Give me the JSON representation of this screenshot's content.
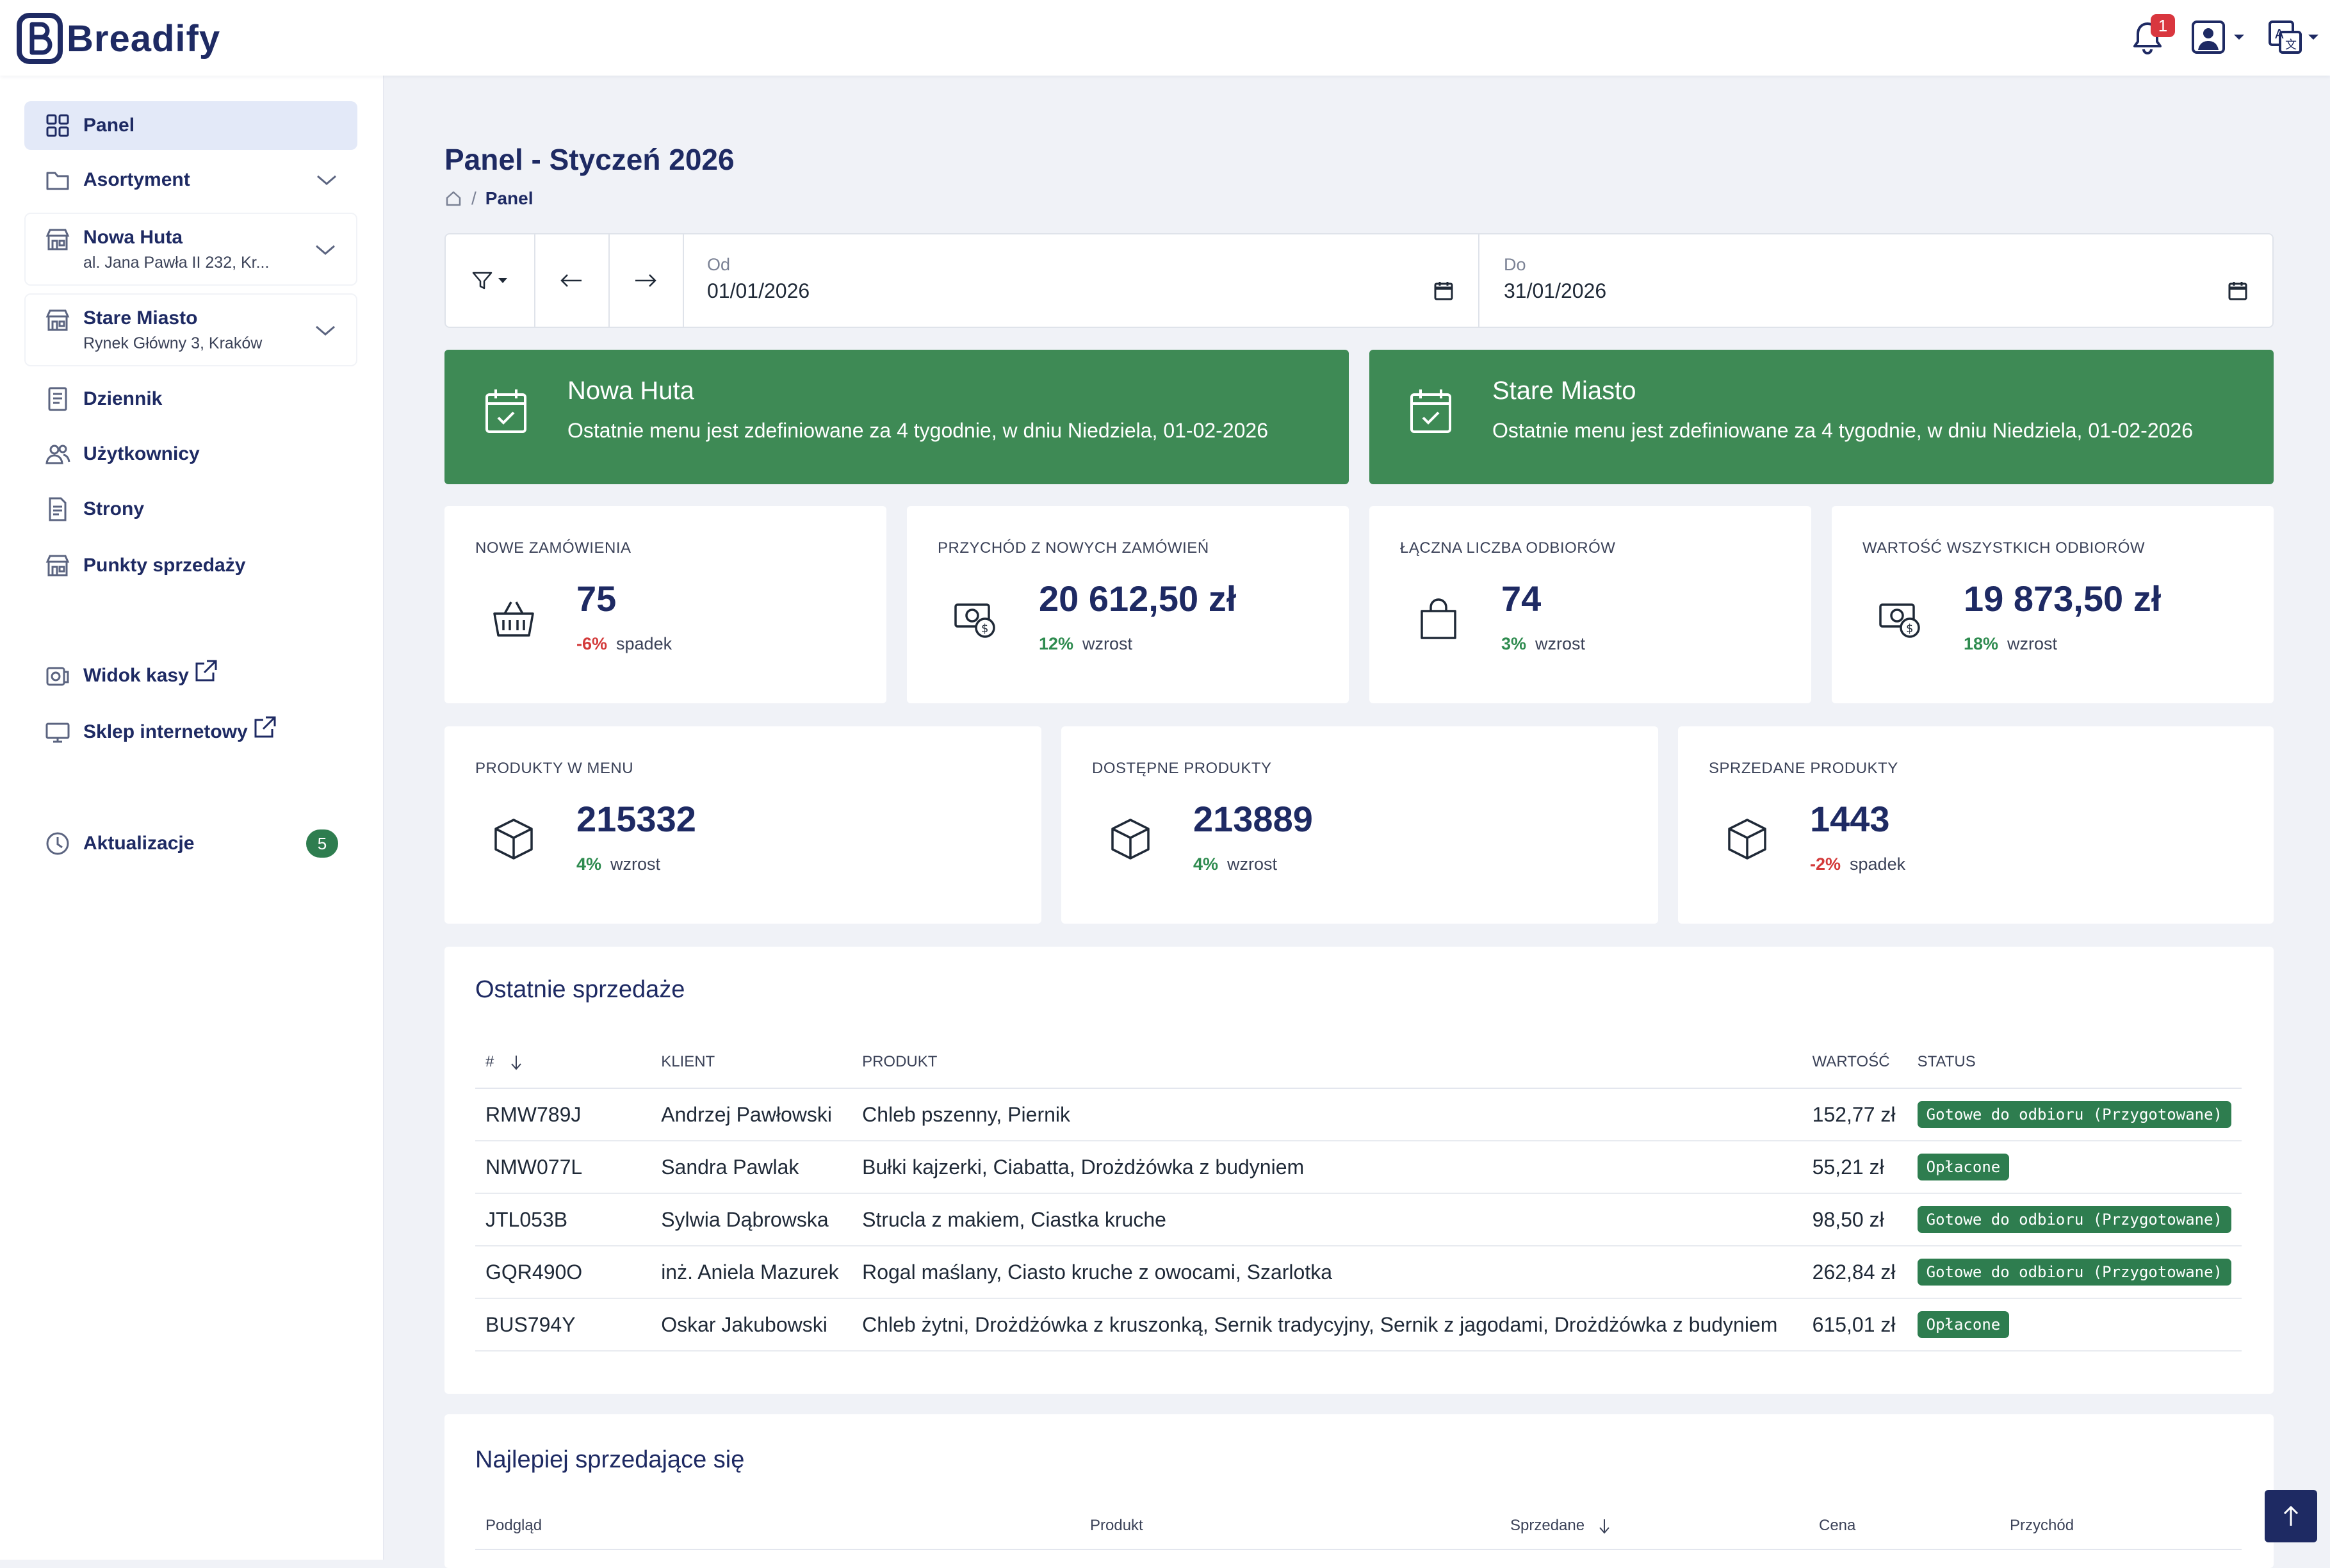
{
  "app": {
    "name": "Breadify",
    "notification_count": "1"
  },
  "sidebar": {
    "items": [
      {
        "label": "Panel"
      },
      {
        "label": "Asortyment"
      },
      {
        "label": "Nowa Huta",
        "sub": "al. Jana Pawła II 232, Kr..."
      },
      {
        "label": "Stare Miasto",
        "sub": "Rynek Główny 3, Kraków"
      },
      {
        "label": "Dziennik"
      },
      {
        "label": "Użytkownicy"
      },
      {
        "label": "Strony"
      },
      {
        "label": "Punkty sprzedaży"
      },
      {
        "label": "Widok kasy"
      },
      {
        "label": "Sklep internetowy"
      },
      {
        "label": "Aktualizacje",
        "badge": "5"
      }
    ]
  },
  "header": {
    "title": "Panel - Styczeń 2026",
    "breadcrumb_current": "Panel",
    "breadcrumb_sep": "/"
  },
  "filter": {
    "from_label": "Od",
    "from_value": "01/01/2026",
    "to_label": "Do",
    "to_value": "31/01/2026"
  },
  "alerts": [
    {
      "title": "Nowa Huta",
      "text": "Ostatnie menu jest zdefiniowane za 4 tygodnie, w dniu Niedziela, 01-02-2026"
    },
    {
      "title": "Stare Miasto",
      "text": "Ostatnie menu jest zdefiniowane za 4 tygodnie, w dniu Niedziela, 01-02-2026"
    }
  ],
  "stats_row1": [
    {
      "label": "Nowe zamówienia",
      "value": "75",
      "change": "-6%",
      "trend": "spadek",
      "icon": "basket-icon"
    },
    {
      "label": "Przychód z nowych zamówień",
      "value": "20 612,50 zł",
      "change": "12%",
      "trend": "wzrost",
      "icon": "money-icon"
    },
    {
      "label": "Łączna liczba odbiorów",
      "value": "74",
      "change": "3%",
      "trend": "wzrost",
      "icon": "bag-icon"
    },
    {
      "label": "Wartość wszystkich odbiorów",
      "value": "19 873,50 zł",
      "change": "18%",
      "trend": "wzrost",
      "icon": "money-icon"
    }
  ],
  "stats_row2": [
    {
      "label": "Produkty w menu",
      "value": "215332",
      "change": "4%",
      "trend": "wzrost",
      "icon": "box-icon"
    },
    {
      "label": "Dostępne produkty",
      "value": "213889",
      "change": "4%",
      "trend": "wzrost",
      "icon": "box-icon"
    },
    {
      "label": "Sprzedane produkty",
      "value": "1443",
      "change": "-2%",
      "trend": "spadek",
      "icon": "box-icon"
    }
  ],
  "recent_sales": {
    "title": "Ostatnie sprzedaże",
    "columns": [
      "#",
      "Klient",
      "Produkt",
      "Wartość",
      "Status"
    ],
    "rows": [
      {
        "id": "RMW789J",
        "client": "Andrzej Pawłowski",
        "product": "Chleb pszenny, Piernik",
        "value": "152,77 zł",
        "status": "Gotowe do odbioru (Przygotowane)"
      },
      {
        "id": "NMW077L",
        "client": "Sandra Pawlak",
        "product": "Bułki kajzerki, Ciabatta, Drożdżówka z budyniem",
        "value": "55,21 zł",
        "status": "Opłacone"
      },
      {
        "id": "JTL053B",
        "client": "Sylwia Dąbrowska",
        "product": "Strucla z makiem, Ciastka kruche",
        "value": "98,50 zł",
        "status": "Gotowe do odbioru (Przygotowane)"
      },
      {
        "id": "GQR490O",
        "client": "inż. Aniela Mazurek",
        "product": "Rogal maślany, Ciasto kruche z owocami, Szarlotka",
        "value": "262,84 zł",
        "status": "Gotowe do odbioru (Przygotowane)"
      },
      {
        "id": "BUS794Y",
        "client": "Oskar Jakubowski",
        "product": "Chleb żytni, Drożdżówka z kruszonką, Sernik tradycyjny, Sernik z jagodami, Drożdżówka z budyniem",
        "value": "615,01 zł",
        "status": "Opłacone"
      }
    ]
  },
  "best_sellers": {
    "title": "Najlepiej sprzedające się",
    "columns": [
      "Podgląd",
      "Produkt",
      "Sprzedane",
      "Cena",
      "Przychód"
    ]
  },
  "colors": {
    "primary": "#1e2a63",
    "success": "#3e8a55",
    "danger": "#d33a3a",
    "link": "#2f6fd6"
  }
}
